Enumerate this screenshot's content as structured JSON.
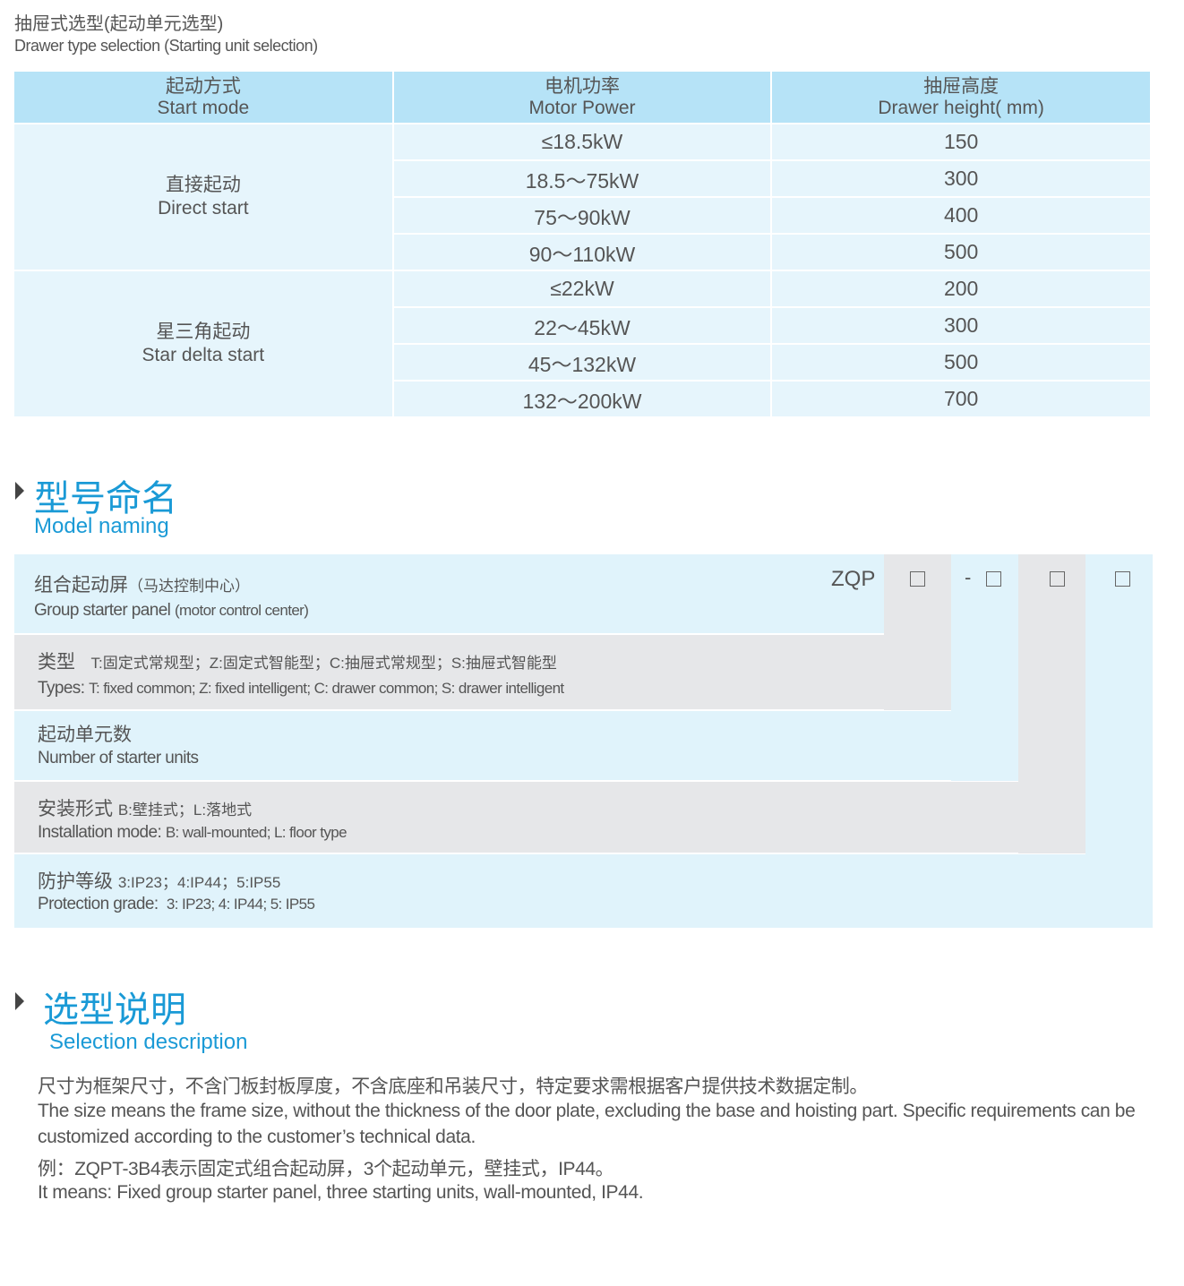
{
  "drawer_section": {
    "title_cn": "抽屉式选型(起动单元选型)",
    "title_en": "Drawer type selection (Starting unit selection)",
    "headers": [
      {
        "cn": "起动方式",
        "en": "Start mode"
      },
      {
        "cn": "电机功率",
        "en": "Motor Power"
      },
      {
        "cn": "抽屉高度",
        "en": "Drawer height( mm)"
      }
    ],
    "groups": [
      {
        "mode_cn": "直接起动",
        "mode_en": "Direct start",
        "rows": [
          [
            "≤18.5kW",
            "150"
          ],
          [
            "18.5～75kW",
            "300"
          ],
          [
            "75～90kW",
            "400"
          ],
          [
            "90～110kW",
            "500"
          ]
        ]
      },
      {
        "mode_cn": "星三角起动",
        "mode_en": "Star delta start",
        "rows": [
          [
            "≤22kW",
            "200"
          ],
          [
            "22～45kW",
            "300"
          ],
          [
            "45～132kW",
            "500"
          ],
          [
            "132～200kW",
            "700"
          ]
        ]
      }
    ]
  },
  "model_naming": {
    "heading_cn": "型号命名",
    "heading_en": "Model naming",
    "code_prefix": "ZQP",
    "dash": "-",
    "rows": [
      {
        "cn": "组合起动屏",
        "cn_note": "（马达控制中心）",
        "en": "Group starter panel",
        "en_note": "(motor control center)"
      },
      {
        "cn": "类型",
        "cn_note": "T:固定式常规型；Z:固定式智能型；C:抽屉式常规型；S:抽屉式智能型",
        "en": "Types:",
        "en_note": "T: fixed common; Z: fixed intelligent; C: drawer common; S: drawer intelligent"
      },
      {
        "cn": "起动单元数",
        "cn_note": "",
        "en": "Number of starter units",
        "en_note": ""
      },
      {
        "cn": "安装形式",
        "cn_note": "B:壁挂式；L:落地式",
        "en": "Installation mode:",
        "en_note": "B: wall-mounted; L: floor type"
      },
      {
        "cn": "防护等级",
        "cn_note": "3:IP23；4:IP44；5:IP55",
        "en": "Protection grade:",
        "en_note": "3: IP23; 4: IP44; 5: IP55"
      }
    ]
  },
  "selection": {
    "heading_cn": "选型说明",
    "heading_en": "Selection description",
    "lines": [
      "尺寸为框架尺寸，不含门板封板厚度，不含底座和吊装尺寸，特定要求需根据客户提供技术数据定制。",
      "The size means the frame size, without the thickness of the door plate, excluding the base and hoisting part. Specific requirements can be",
      "customized according to the customer’s technical data.",
      "例：ZQPT-3B4表示固定式组合起动屏，3个起动单元，壁挂式，IP44。",
      "It means: Fixed group starter panel, three starting units, wall-mounted, IP44."
    ]
  },
  "colors": {
    "accent": "#1a9ad6",
    "header_bg": "#b6e3f7",
    "cell_bg": "#e6f5fc",
    "gray_band": "#e6e7e9"
  }
}
